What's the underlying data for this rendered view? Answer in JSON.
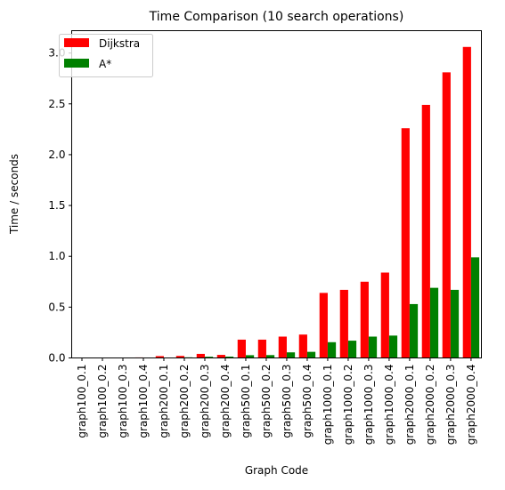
{
  "chart_data": {
    "type": "bar",
    "title": "Time Comparison (10 search operations)",
    "xlabel": "Graph Code",
    "ylabel": "Time / seconds",
    "ylim": [
      0,
      3.22
    ],
    "yticks": [
      "0.0",
      "0.5",
      "1.0",
      "1.5",
      "2.0",
      "2.5",
      "3.0"
    ],
    "grid": false,
    "legend_position": "top-left",
    "categories": [
      "graph100_0.1",
      "graph100_0.2",
      "graph100_0.3",
      "graph100_0.4",
      "graph200_0.1",
      "graph200_0.2",
      "graph200_0.3",
      "graph200_0.4",
      "graph500_0.1",
      "graph500_0.2",
      "graph500_0.3",
      "graph500_0.4",
      "graph1000_0.1",
      "graph1000_0.2",
      "graph1000_0.3",
      "graph1000_0.4",
      "graph2000_0.1",
      "graph2000_0.2",
      "graph2000_0.3",
      "graph2000_0.4"
    ],
    "series": [
      {
        "name": "Dijkstra",
        "color": "#ff0000",
        "values": [
          0.004,
          0.004,
          0.004,
          0.005,
          0.018,
          0.02,
          0.04,
          0.03,
          0.18,
          0.18,
          0.21,
          0.23,
          0.64,
          0.67,
          0.75,
          0.84,
          2.26,
          2.49,
          2.81,
          3.06
        ]
      },
      {
        "name": "A*",
        "color": "#008000",
        "values": [
          0.002,
          0.002,
          0.003,
          0.003,
          0.004,
          0.006,
          0.012,
          0.013,
          0.027,
          0.028,
          0.055,
          0.06,
          0.155,
          0.17,
          0.21,
          0.22,
          0.53,
          0.69,
          0.67,
          0.99
        ]
      }
    ]
  }
}
